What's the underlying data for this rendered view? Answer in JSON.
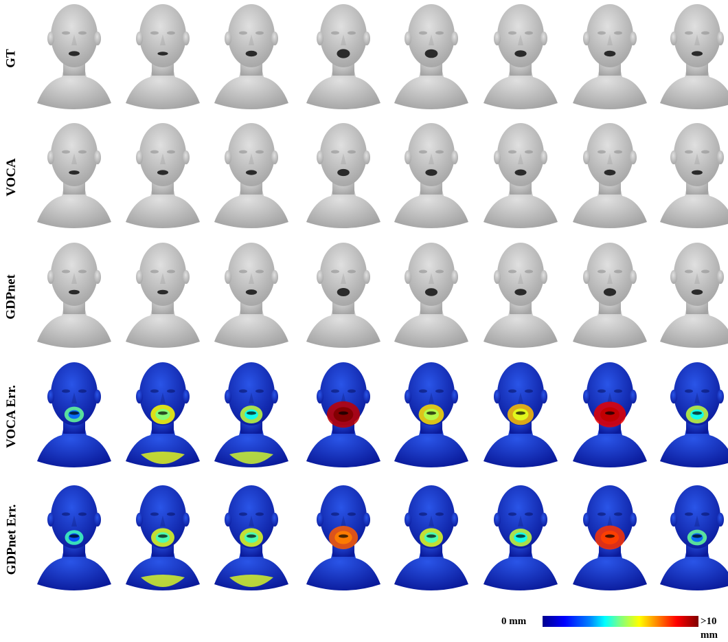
{
  "rows": [
    {
      "label": "GT",
      "kind": "mesh"
    },
    {
      "label": "VOCA",
      "kind": "mesh"
    },
    {
      "label": "GDPnet",
      "kind": "mesh"
    },
    {
      "label": "VOCA Err.",
      "kind": "error"
    },
    {
      "label": "GDPnet Err.",
      "kind": "error"
    }
  ],
  "columns": 8,
  "colorbar": {
    "min_label": "0 mm",
    "max_label": ">10 mm"
  },
  "mouth_open": [
    [
      0.35,
      0.2,
      0.45,
      0.85,
      0.8,
      0.55,
      0.45,
      0.35
    ],
    [
      0.25,
      0.35,
      0.35,
      0.6,
      0.55,
      0.5,
      0.45,
      0.3
    ],
    [
      0.3,
      0.3,
      0.4,
      0.75,
      0.7,
      0.55,
      0.7,
      0.4
    ]
  ],
  "error_level": [
    [
      0.3,
      0.55,
      0.45,
      1.0,
      0.6,
      0.65,
      0.95,
      0.45
    ],
    [
      0.25,
      0.5,
      0.5,
      0.8,
      0.5,
      0.45,
      0.85,
      0.3
    ]
  ],
  "colors": {
    "mesh_fill": "#c9c9c9",
    "mesh_shade": "#a3a3a3",
    "error_base": "#1030c8"
  }
}
